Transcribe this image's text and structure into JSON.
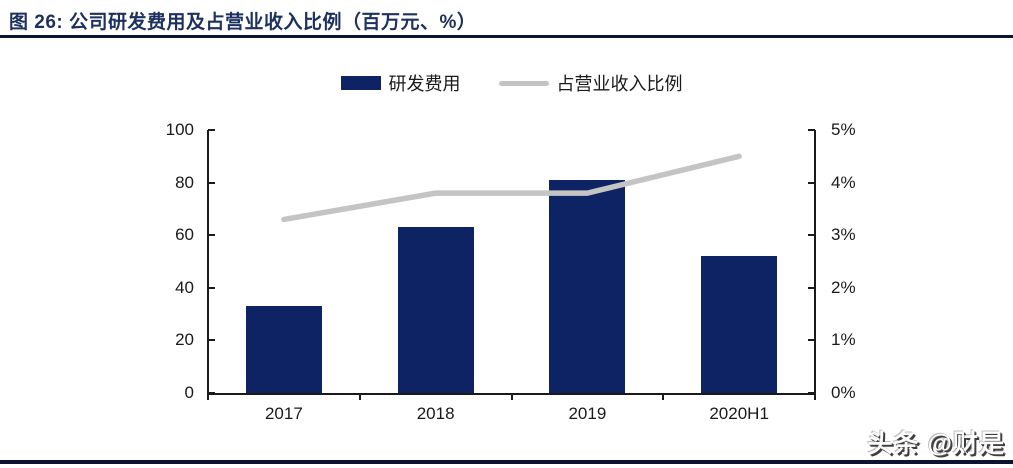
{
  "figure": {
    "title": "图 26: 公司研发费用及占营业收入比例（百万元、%）",
    "title_color": "#1d3160",
    "rule_color": "#0c1530"
  },
  "watermark": "头条 @财是",
  "legend": {
    "items": [
      {
        "label": "研发费用",
        "type": "bar",
        "color": "#0e2363"
      },
      {
        "label": "占营业收入比例",
        "type": "line",
        "color": "#c4c4c4"
      }
    ]
  },
  "chart_data": {
    "type": "bar",
    "subtype": "bar+line combo, dual axis",
    "title": "公司研发费用及占营业收入比例（百万元、%）",
    "categories": [
      "2017",
      "2018",
      "2019",
      "2020H1"
    ],
    "series": [
      {
        "name": "研发费用",
        "type": "bar",
        "axis": "left",
        "color": "#0e2363",
        "values": [
          33,
          63,
          81,
          52
        ]
      },
      {
        "name": "占营业收入比例",
        "type": "line",
        "axis": "right",
        "color": "#c4c4c4",
        "values": [
          3.3,
          3.8,
          3.8,
          4.5
        ]
      }
    ],
    "left_axis": {
      "min": 0,
      "max": 100,
      "tick_labels": [
        "0",
        "20",
        "40",
        "60",
        "80",
        "100"
      ]
    },
    "right_axis": {
      "min": 0,
      "max": 5,
      "tick_labels": [
        "0%",
        "1%",
        "2%",
        "3%",
        "4%",
        "5%"
      ]
    },
    "xlabel": "",
    "ylabel_left": "百万元",
    "ylabel_right": "%",
    "grid": false,
    "legend_position": "top-center"
  }
}
